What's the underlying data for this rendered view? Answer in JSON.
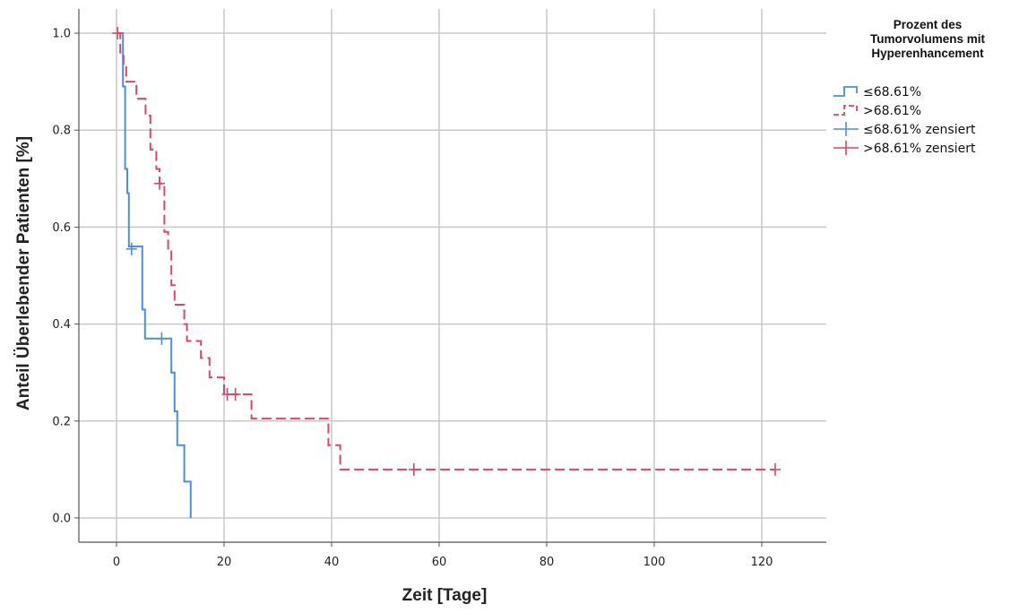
{
  "chart_data": {
    "type": "line",
    "subtype": "kaplan-meier",
    "xlabel": "Zeit [Tage]",
    "ylabel": "Anteil Überlebender Patienten [%]",
    "xlim": [
      -7,
      132
    ],
    "ylim": [
      -0.05,
      1.05
    ],
    "xticks": [
      0,
      20,
      40,
      60,
      80,
      100,
      120
    ],
    "yticks": [
      0.0,
      0.2,
      0.4,
      0.6,
      0.8,
      1.0
    ],
    "xtick_labels": [
      "0",
      "20",
      "40",
      "60",
      "80",
      "100",
      "120"
    ],
    "ytick_labels": [
      "0.0",
      "0.2",
      "0.4",
      "0.6",
      "0.8",
      "1.0"
    ],
    "grid": true,
    "legend_position": "top-right",
    "legend": {
      "title_lines": [
        "Prozent des",
        "Tumorvolumens mit",
        "Hyperenhancement"
      ],
      "entries": [
        {
          "label": "≤68.61%",
          "kind": "line",
          "series": 0
        },
        {
          "label": ">68.61%",
          "kind": "line",
          "series": 1
        },
        {
          "label": "≤68.61% zensiert",
          "kind": "censor",
          "series": 0
        },
        {
          "label": ">68.61% zensiert",
          "kind": "censor",
          "series": 1
        }
      ]
    },
    "series": [
      {
        "label": "≤68.61%",
        "color": "#4a90e2",
        "dashed": false,
        "steps": [
          [
            0,
            1.0
          ],
          [
            1.2,
            0.89
          ],
          [
            1.6,
            0.72
          ],
          [
            2.0,
            0.67
          ],
          [
            2.3,
            0.56
          ],
          [
            4.8,
            0.43
          ],
          [
            5.3,
            0.37
          ],
          [
            10.2,
            0.3
          ],
          [
            10.8,
            0.22
          ],
          [
            11.3,
            0.15
          ],
          [
            12.6,
            0.075
          ],
          [
            13.8,
            0.0
          ]
        ],
        "censored": [
          [
            2.8,
            0.555
          ],
          [
            8.4,
            0.37
          ]
        ]
      },
      {
        "label": ">68.61%",
        "color": "#e04468",
        "dashed": true,
        "steps": [
          [
            0,
            1.0
          ],
          [
            0.7,
            0.96
          ],
          [
            1.3,
            0.93
          ],
          [
            1.8,
            0.9
          ],
          [
            3.7,
            0.865
          ],
          [
            5.4,
            0.83
          ],
          [
            6.3,
            0.76
          ],
          [
            7.4,
            0.72
          ],
          [
            8.0,
            0.69
          ],
          [
            8.9,
            0.59
          ],
          [
            9.6,
            0.55
          ],
          [
            10.2,
            0.48
          ],
          [
            10.8,
            0.44
          ],
          [
            12.6,
            0.4
          ],
          [
            13.1,
            0.365
          ],
          [
            15.7,
            0.33
          ],
          [
            17.3,
            0.29
          ],
          [
            20.0,
            0.255
          ],
          [
            25.1,
            0.205
          ],
          [
            39.4,
            0.15
          ],
          [
            41.6,
            0.1
          ],
          [
            122.5,
            0.1
          ]
        ],
        "censored": [
          [
            0.2,
            1.0
          ],
          [
            8.0,
            0.69
          ],
          [
            20.6,
            0.255
          ],
          [
            22.1,
            0.255
          ],
          [
            55.3,
            0.1
          ],
          [
            122.5,
            0.1
          ]
        ]
      }
    ]
  }
}
